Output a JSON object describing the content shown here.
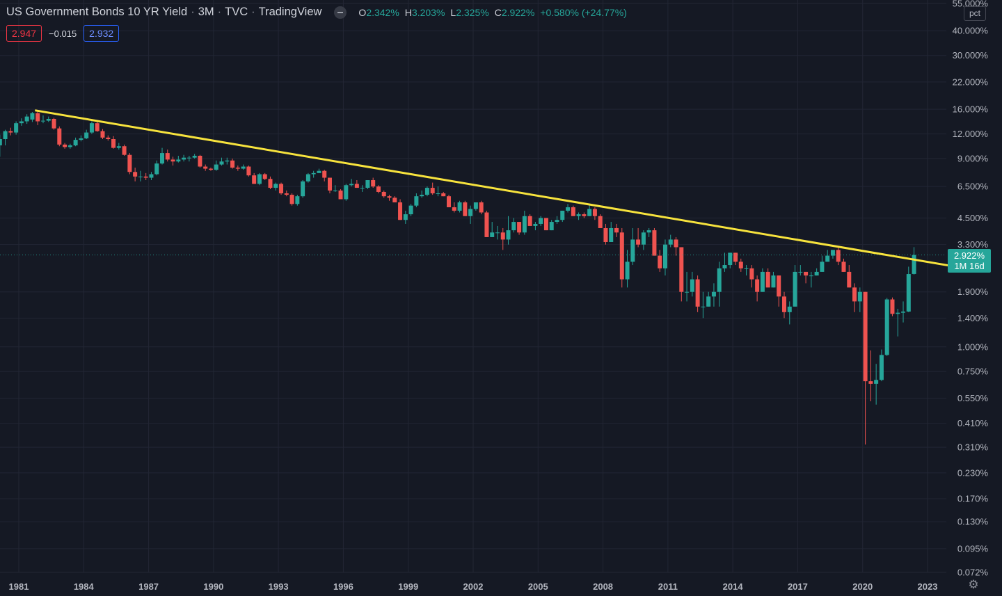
{
  "header": {
    "symbol": "US Government Bonds 10 YR Yield",
    "interval": "3M",
    "exchange": "TVC",
    "source": "TradingView",
    "ohlc": {
      "o_label": "O",
      "o": "2.342%",
      "h_label": "H",
      "h": "3.203%",
      "l_label": "L",
      "l": "2.325%",
      "c_label": "C",
      "c": "2.922%",
      "change": "+0.580% (+24.77%)"
    }
  },
  "trade": {
    "sell": "2.947",
    "spread": "−0.015",
    "buy": "2.932"
  },
  "scale_mode": "pct",
  "last_price": {
    "value": "2.922%",
    "countdown": "1M 16d"
  },
  "colors": {
    "up": "#26a69a",
    "down": "#ef5350",
    "trendline": "#f7e33d",
    "background": "#151924",
    "grid": "#222634"
  },
  "chart_data": {
    "type": "candlestick",
    "y_scale": "log",
    "y_ticks": [
      "55.000%",
      "40.000%",
      "30.000%",
      "22.000%",
      "16.000%",
      "12.000%",
      "9.000%",
      "6.500%",
      "4.500%",
      "3.300%",
      "1.900%",
      "1.400%",
      "1.000%",
      "0.750%",
      "0.550%",
      "0.410%",
      "0.310%",
      "0.230%",
      "0.170%",
      "0.130%",
      "0.095%",
      "0.072%"
    ],
    "x_ticks": [
      "1981",
      "1984",
      "1987",
      "1990",
      "1993",
      "1996",
      "1999",
      "2002",
      "2005",
      "2008",
      "2011",
      "2014",
      "2017",
      "2020",
      "2023"
    ],
    "x_range": [
      1980.15,
      2024.3
    ],
    "y_range": [
      0.072,
      55
    ],
    "trendline": {
      "from": [
        1981.75,
        15.8
      ],
      "to": [
        2024.3,
        2.55
      ]
    },
    "candles": [
      [
        1980.0,
        10.5,
        11.9,
        9.2,
        11.3
      ],
      [
        1980.25,
        11.3,
        12.6,
        10.5,
        12.4
      ],
      [
        1980.5,
        12.4,
        12.9,
        11.8,
        12.2
      ],
      [
        1980.75,
        12.2,
        13.9,
        11.9,
        13.6
      ],
      [
        1981.0,
        13.6,
        14.4,
        13.2,
        13.9
      ],
      [
        1981.25,
        13.9,
        15.1,
        13.5,
        14.7
      ],
      [
        1981.5,
        14.2,
        15.5,
        13.8,
        15.3
      ],
      [
        1981.75,
        15.3,
        15.8,
        13.3,
        13.9
      ],
      [
        1982.0,
        13.9,
        14.9,
        13.6,
        14.0
      ],
      [
        1982.25,
        14.0,
        14.7,
        13.8,
        14.3
      ],
      [
        1982.5,
        14.3,
        14.5,
        12.6,
        12.8
      ],
      [
        1982.75,
        12.8,
        13.1,
        10.4,
        10.6
      ],
      [
        1983.0,
        10.6,
        10.8,
        10.1,
        10.3
      ],
      [
        1983.25,
        10.3,
        10.7,
        10.1,
        10.5
      ],
      [
        1983.5,
        10.5,
        11.5,
        10.4,
        11.2
      ],
      [
        1983.75,
        11.2,
        11.8,
        11.0,
        11.4
      ],
      [
        1984.0,
        11.4,
        12.6,
        11.3,
        12.2
      ],
      [
        1984.25,
        12.2,
        13.9,
        12.0,
        13.6
      ],
      [
        1984.5,
        13.6,
        13.9,
        12.3,
        12.4
      ],
      [
        1984.75,
        12.4,
        12.7,
        11.3,
        11.5
      ],
      [
        1985.0,
        11.5,
        11.8,
        11.1,
        11.3
      ],
      [
        1985.25,
        11.3,
        11.7,
        10.1,
        10.2
      ],
      [
        1985.5,
        10.2,
        10.8,
        10.0,
        10.4
      ],
      [
        1985.75,
        10.4,
        10.6,
        9.3,
        9.4
      ],
      [
        1986.0,
        9.4,
        9.6,
        7.5,
        7.7
      ],
      [
        1986.25,
        7.7,
        8.1,
        6.9,
        7.3
      ],
      [
        1986.5,
        7.3,
        7.8,
        6.9,
        7.3
      ],
      [
        1986.75,
        7.3,
        7.6,
        7.0,
        7.2
      ],
      [
        1987.0,
        7.2,
        7.7,
        7.0,
        7.5
      ],
      [
        1987.25,
        7.5,
        8.8,
        7.4,
        8.5
      ],
      [
        1987.5,
        8.5,
        10.2,
        8.4,
        9.6
      ],
      [
        1987.75,
        9.6,
        10.0,
        8.7,
        8.9
      ],
      [
        1988.0,
        8.9,
        9.2,
        8.3,
        8.7
      ],
      [
        1988.25,
        8.7,
        9.3,
        8.6,
        8.9
      ],
      [
        1988.5,
        8.9,
        9.4,
        8.7,
        9.1
      ],
      [
        1988.75,
        9.1,
        9.3,
        8.7,
        9.1
      ],
      [
        1989.0,
        9.1,
        9.5,
        9.0,
        9.3
      ],
      [
        1989.25,
        9.3,
        9.4,
        8.1,
        8.2
      ],
      [
        1989.5,
        8.2,
        8.4,
        7.8,
        8.0
      ],
      [
        1989.75,
        8.0,
        8.1,
        7.8,
        7.9
      ],
      [
        1990.0,
        7.9,
        8.8,
        7.8,
        8.4
      ],
      [
        1990.25,
        8.4,
        9.1,
        8.3,
        8.7
      ],
      [
        1990.5,
        8.7,
        9.1,
        8.4,
        8.8
      ],
      [
        1990.75,
        8.8,
        9.0,
        8.0,
        8.1
      ],
      [
        1991.0,
        8.1,
        8.3,
        7.8,
        8.0
      ],
      [
        1991.25,
        8.0,
        8.4,
        7.9,
        8.2
      ],
      [
        1991.5,
        8.2,
        8.3,
        7.3,
        7.4
      ],
      [
        1991.75,
        7.4,
        7.6,
        6.7,
        6.7
      ],
      [
        1992.0,
        6.7,
        7.6,
        6.6,
        7.5
      ],
      [
        1992.25,
        7.5,
        7.6,
        7.0,
        7.1
      ],
      [
        1992.5,
        7.1,
        7.3,
        6.3,
        6.4
      ],
      [
        1992.75,
        6.4,
        6.8,
        6.2,
        6.7
      ],
      [
        1993.0,
        6.7,
        6.8,
        5.9,
        6.0
      ],
      [
        1993.25,
        6.0,
        6.2,
        5.8,
        5.9
      ],
      [
        1993.5,
        5.9,
        6.0,
        5.2,
        5.3
      ],
      [
        1993.75,
        5.3,
        5.9,
        5.2,
        5.8
      ],
      [
        1994.0,
        5.8,
        7.0,
        5.7,
        6.9
      ],
      [
        1994.25,
        6.9,
        7.6,
        6.8,
        7.5
      ],
      [
        1994.5,
        7.5,
        7.8,
        7.2,
        7.6
      ],
      [
        1994.75,
        7.6,
        8.0,
        7.6,
        7.8
      ],
      [
        1995.0,
        7.8,
        7.9,
        6.9,
        7.2
      ],
      [
        1995.25,
        7.2,
        7.2,
        6.0,
        6.2
      ],
      [
        1995.5,
        6.2,
        6.6,
        6.1,
        6.2
      ],
      [
        1995.75,
        6.2,
        6.3,
        5.6,
        5.6
      ],
      [
        1996.0,
        5.6,
        6.7,
        5.5,
        6.6
      ],
      [
        1996.25,
        6.6,
        7.1,
        6.5,
        6.7
      ],
      [
        1996.5,
        6.7,
        7.0,
        6.4,
        6.4
      ],
      [
        1996.75,
        6.4,
        6.6,
        6.1,
        6.4
      ],
      [
        1997.0,
        6.4,
        7.0,
        6.3,
        7.0
      ],
      [
        1997.25,
        7.0,
        7.2,
        6.4,
        6.5
      ],
      [
        1997.5,
        6.5,
        6.6,
        6.0,
        6.1
      ],
      [
        1997.75,
        6.1,
        6.2,
        5.7,
        5.8
      ],
      [
        1998.0,
        5.8,
        5.9,
        5.5,
        5.7
      ],
      [
        1998.25,
        5.7,
        5.8,
        5.4,
        5.4
      ],
      [
        1998.5,
        5.4,
        5.6,
        4.4,
        4.4
      ],
      [
        1998.75,
        4.4,
        4.9,
        4.2,
        4.7
      ],
      [
        1999.0,
        4.7,
        5.3,
        4.6,
        5.2
      ],
      [
        1999.25,
        5.2,
        6.0,
        5.1,
        5.8
      ],
      [
        1999.5,
        5.8,
        6.2,
        5.7,
        5.9
      ],
      [
        1999.75,
        5.9,
        6.5,
        5.8,
        6.4
      ],
      [
        2000.0,
        6.4,
        6.8,
        5.9,
        6.0
      ],
      [
        2000.25,
        6.0,
        6.5,
        5.8,
        6.0
      ],
      [
        2000.5,
        6.0,
        6.1,
        5.8,
        5.8
      ],
      [
        2000.75,
        5.8,
        5.9,
        5.1,
        5.1
      ],
      [
        2001.0,
        5.1,
        5.4,
        4.8,
        4.9
      ],
      [
        2001.25,
        4.9,
        5.5,
        4.8,
        5.4
      ],
      [
        2001.5,
        5.4,
        5.5,
        4.6,
        4.6
      ],
      [
        2001.75,
        4.6,
        5.2,
        4.2,
        5.0
      ],
      [
        2002.0,
        5.0,
        5.4,
        4.9,
        5.4
      ],
      [
        2002.25,
        5.4,
        5.5,
        4.7,
        4.8
      ],
      [
        2002.5,
        4.8,
        4.9,
        3.6,
        3.6
      ],
      [
        2002.75,
        3.6,
        4.3,
        3.6,
        3.8
      ],
      [
        2003.0,
        3.8,
        4.1,
        3.5,
        3.8
      ],
      [
        2003.25,
        3.8,
        4.0,
        3.1,
        3.5
      ],
      [
        2003.5,
        3.5,
        4.6,
        3.3,
        3.9
      ],
      [
        2003.75,
        3.9,
        4.5,
        3.8,
        4.3
      ],
      [
        2004.0,
        4.3,
        4.3,
        3.7,
        3.8
      ],
      [
        2004.25,
        3.8,
        4.9,
        3.7,
        4.6
      ],
      [
        2004.5,
        4.6,
        4.7,
        4.1,
        4.1
      ],
      [
        2004.75,
        4.1,
        4.3,
        3.9,
        4.2
      ],
      [
        2005.0,
        4.2,
        4.6,
        4.1,
        4.5
      ],
      [
        2005.25,
        4.5,
        4.5,
        3.9,
        3.9
      ],
      [
        2005.5,
        3.9,
        4.4,
        3.9,
        4.3
      ],
      [
        2005.75,
        4.3,
        4.6,
        4.2,
        4.4
      ],
      [
        2006.0,
        4.4,
        4.9,
        4.3,
        4.9
      ],
      [
        2006.25,
        4.9,
        5.3,
        4.8,
        5.1
      ],
      [
        2006.5,
        5.1,
        5.2,
        4.6,
        4.6
      ],
      [
        2006.75,
        4.6,
        4.8,
        4.4,
        4.7
      ],
      [
        2007.0,
        4.7,
        4.8,
        4.5,
        4.6
      ],
      [
        2007.25,
        4.6,
        5.3,
        4.6,
        5.0
      ],
      [
        2007.5,
        5.0,
        5.1,
        4.4,
        4.6
      ],
      [
        2007.75,
        4.6,
        4.7,
        4.0,
        4.0
      ],
      [
        2008.0,
        4.0,
        4.2,
        3.3,
        3.4
      ],
      [
        2008.25,
        3.4,
        4.3,
        3.4,
        4.0
      ],
      [
        2008.5,
        4.0,
        4.2,
        3.6,
        3.8
      ],
      [
        2008.75,
        3.8,
        4.0,
        2.0,
        2.2
      ],
      [
        2009.0,
        2.2,
        3.1,
        2.0,
        2.7
      ],
      [
        2009.25,
        2.7,
        4.0,
        2.6,
        3.5
      ],
      [
        2009.5,
        3.5,
        4.0,
        3.2,
        3.3
      ],
      [
        2009.75,
        3.3,
        3.9,
        3.1,
        3.8
      ],
      [
        2010.0,
        3.8,
        4.0,
        3.6,
        3.9
      ],
      [
        2010.25,
        3.9,
        4.0,
        2.9,
        2.9
      ],
      [
        2010.5,
        2.9,
        3.1,
        2.4,
        2.5
      ],
      [
        2010.75,
        2.5,
        3.5,
        2.3,
        3.3
      ],
      [
        2011.0,
        3.3,
        3.7,
        3.2,
        3.5
      ],
      [
        2011.25,
        3.5,
        3.6,
        2.9,
        3.2
      ],
      [
        2011.5,
        3.2,
        3.2,
        1.7,
        1.9
      ],
      [
        2011.75,
        1.9,
        2.4,
        1.7,
        1.9
      ],
      [
        2012.0,
        1.9,
        2.4,
        1.8,
        2.2
      ],
      [
        2012.25,
        2.2,
        2.3,
        1.5,
        1.6
      ],
      [
        2012.5,
        1.6,
        1.9,
        1.4,
        1.6
      ],
      [
        2012.75,
        1.6,
        1.9,
        1.6,
        1.8
      ],
      [
        2013.0,
        1.8,
        2.1,
        1.6,
        1.9
      ],
      [
        2013.25,
        1.9,
        2.7,
        1.6,
        2.5
      ],
      [
        2013.5,
        2.5,
        3.0,
        2.4,
        2.6
      ],
      [
        2013.75,
        2.6,
        3.0,
        2.5,
        3.0
      ],
      [
        2014.0,
        3.0,
        3.0,
        2.6,
        2.7
      ],
      [
        2014.25,
        2.7,
        2.8,
        2.4,
        2.5
      ],
      [
        2014.5,
        2.5,
        2.6,
        2.3,
        2.5
      ],
      [
        2014.75,
        2.5,
        2.6,
        2.0,
        2.2
      ],
      [
        2015.0,
        2.2,
        2.3,
        1.7,
        1.9
      ],
      [
        2015.25,
        1.9,
        2.5,
        1.9,
        2.4
      ],
      [
        2015.5,
        2.4,
        2.5,
        2.0,
        2.0
      ],
      [
        2015.75,
        2.0,
        2.4,
        2.0,
        2.3
      ],
      [
        2016.0,
        2.3,
        2.3,
        1.6,
        1.8
      ],
      [
        2016.25,
        1.8,
        1.9,
        1.4,
        1.5
      ],
      [
        2016.5,
        1.5,
        1.7,
        1.3,
        1.6
      ],
      [
        2016.75,
        1.6,
        2.6,
        1.6,
        2.4
      ],
      [
        2017.0,
        2.4,
        2.6,
        2.3,
        2.4
      ],
      [
        2017.25,
        2.4,
        2.4,
        2.1,
        2.3
      ],
      [
        2017.5,
        2.3,
        2.4,
        2.0,
        2.3
      ],
      [
        2017.75,
        2.3,
        2.5,
        2.3,
        2.4
      ],
      [
        2018.0,
        2.4,
        2.9,
        2.4,
        2.7
      ],
      [
        2018.25,
        2.7,
        3.1,
        2.7,
        2.9
      ],
      [
        2018.5,
        2.9,
        3.1,
        2.8,
        3.1
      ],
      [
        2018.75,
        3.1,
        3.2,
        2.6,
        2.7
      ],
      [
        2019.0,
        2.7,
        2.8,
        2.4,
        2.4
      ],
      [
        2019.25,
        2.4,
        2.6,
        2.0,
        2.0
      ],
      [
        2019.5,
        2.0,
        2.1,
        1.5,
        1.7
      ],
      [
        2019.75,
        1.7,
        2.0,
        1.5,
        1.9
      ],
      [
        2020.0,
        1.9,
        1.9,
        0.32,
        0.67
      ],
      [
        2020.25,
        0.67,
        0.96,
        0.53,
        0.65
      ],
      [
        2020.5,
        0.65,
        0.82,
        0.51,
        0.68
      ],
      [
        2020.75,
        0.68,
        0.97,
        0.67,
        0.91
      ],
      [
        2021.0,
        0.91,
        1.77,
        0.9,
        1.74
      ],
      [
        2021.25,
        1.74,
        1.78,
        1.43,
        1.47
      ],
      [
        2021.5,
        1.47,
        1.56,
        1.13,
        1.49
      ],
      [
        2021.75,
        1.49,
        1.7,
        1.33,
        1.51
      ],
      [
        2022.0,
        1.51,
        2.55,
        1.5,
        2.34
      ],
      [
        2022.25,
        2.342,
        3.203,
        2.325,
        2.922
      ]
    ]
  }
}
